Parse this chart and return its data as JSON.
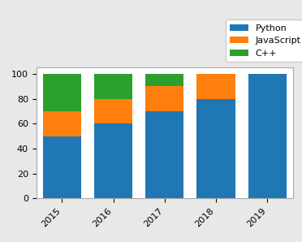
{
  "years": [
    "2015",
    "2016",
    "2017",
    "2018",
    "2019"
  ],
  "python": [
    50,
    60,
    70,
    80,
    100
  ],
  "javascript": [
    20,
    20,
    20,
    20,
    0
  ],
  "cpp": [
    30,
    20,
    10,
    0,
    0
  ],
  "colors": {
    "python": "#1f77b4",
    "javascript": "#ff7f0e",
    "cpp": "#2ca02c"
  },
  "legend_labels": [
    "Python",
    "JavaScript",
    "C++"
  ],
  "ylim": [
    0,
    105
  ],
  "yticks": [
    0,
    20,
    40,
    60,
    80,
    100
  ],
  "background_color": "#e8e8e8",
  "axes_bg_color": "#ffffff",
  "bar_width": 0.75,
  "tick_fontsize": 8,
  "legend_fontsize": 8
}
